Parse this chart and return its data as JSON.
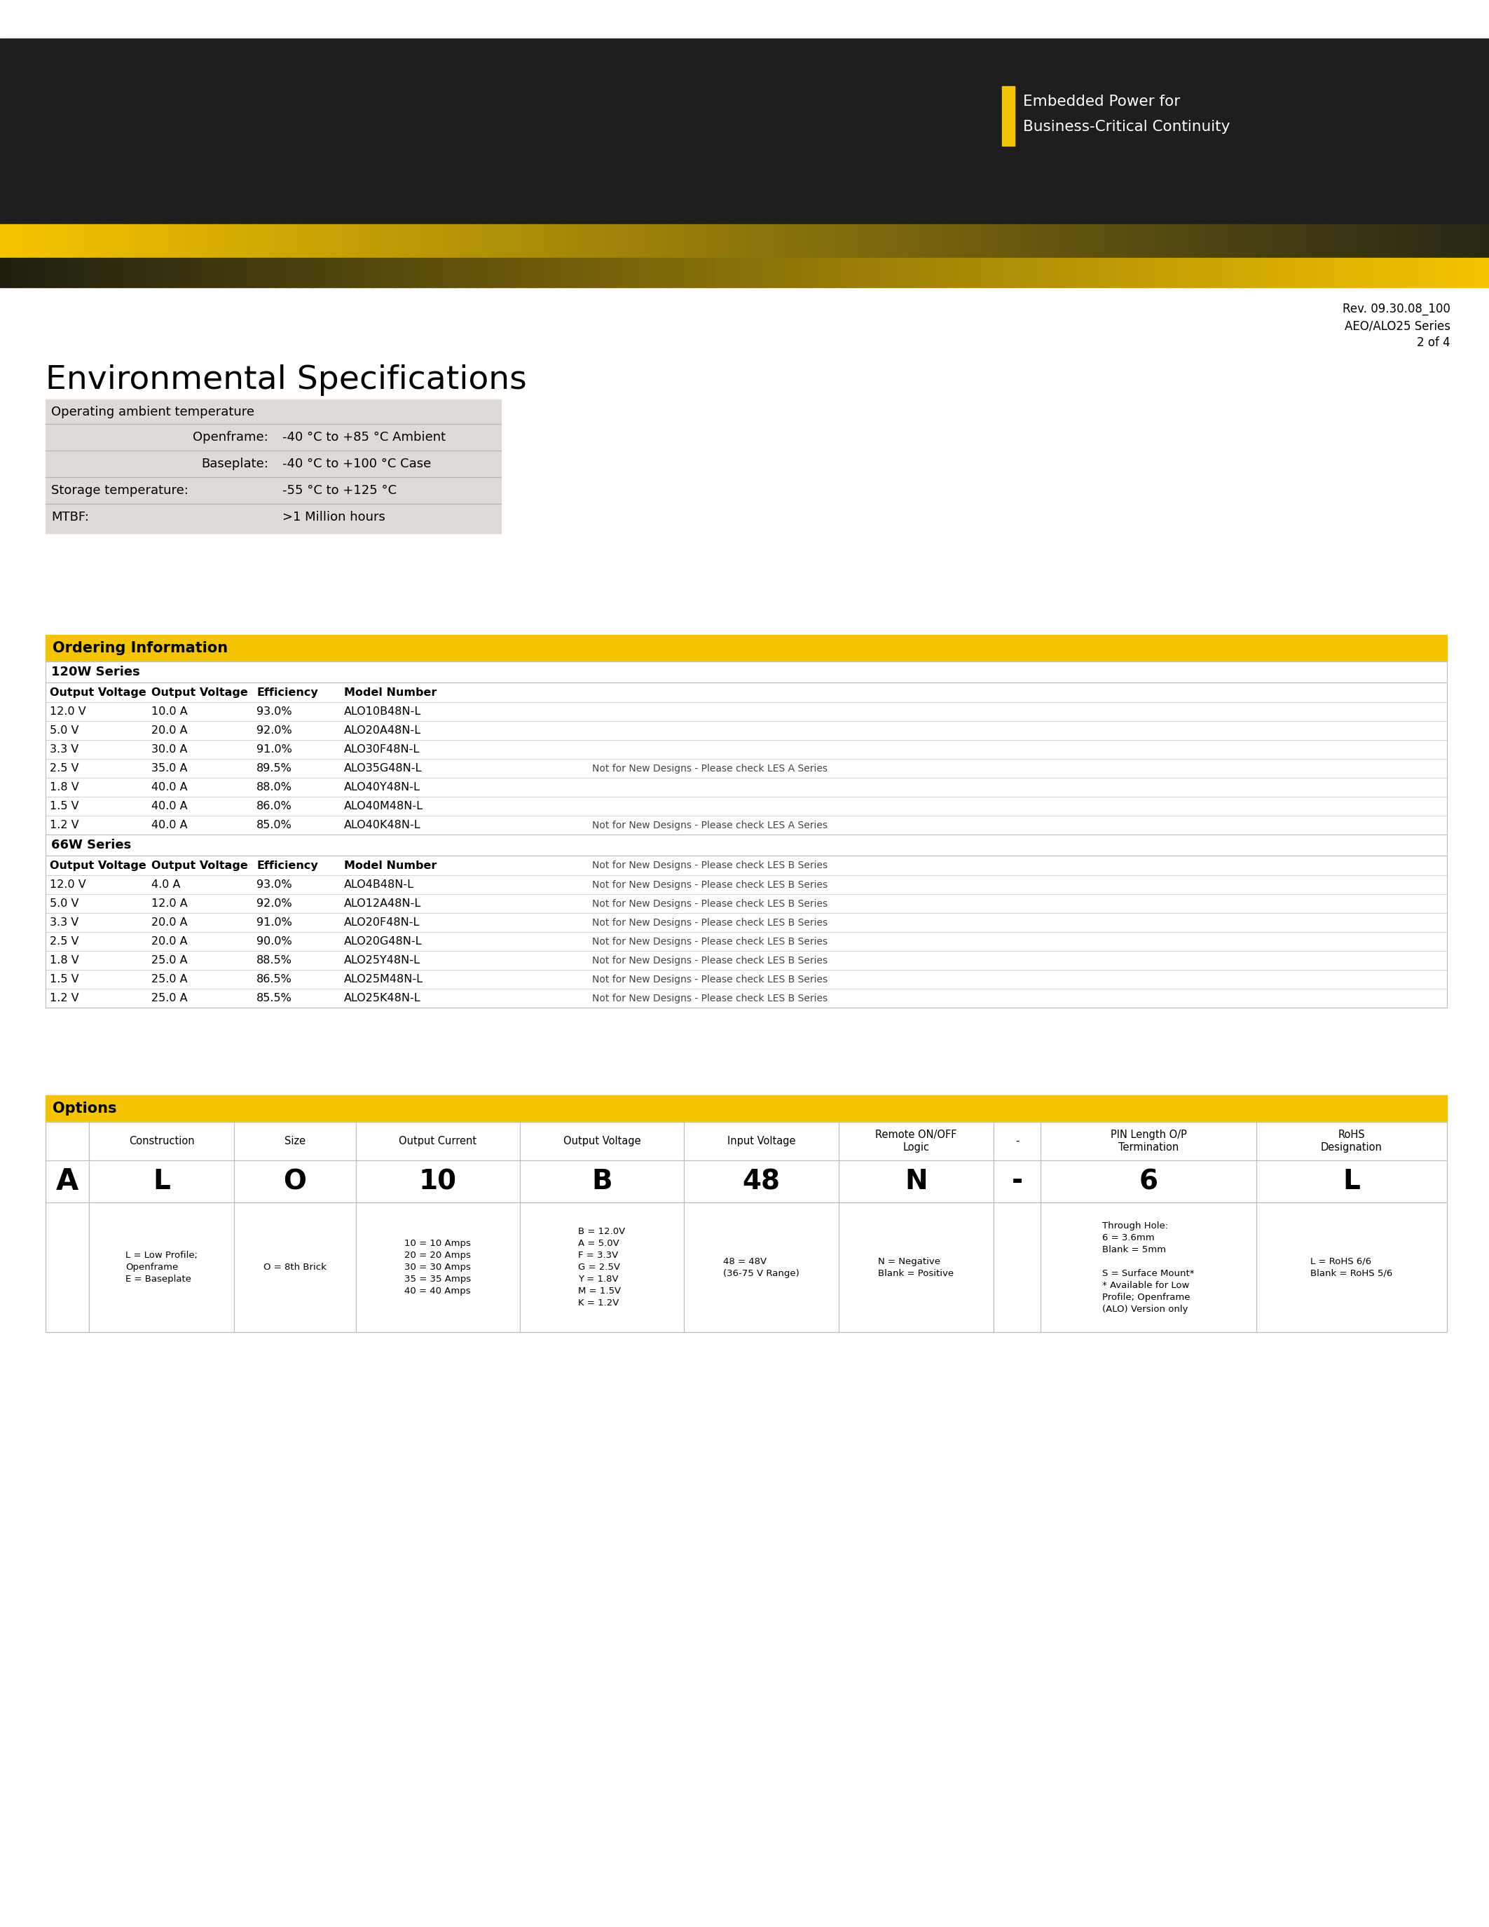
{
  "bg_color": "#ffffff",
  "header_dark_color": "#1e1e1e",
  "yellow_color": "#f5c400",
  "rev_text": "Rev. 09.30.08_100",
  "series_text": "AEO/ALO25 Series",
  "page_text": "2 of 4",
  "env_title": "Environmental Specifications",
  "env_table_bg": "#dedad5",
  "env_rows": [
    [
      "Operating ambient temperature",
      "",
      false
    ],
    [
      "Openframe:",
      "-40 °C to +85 °C Ambient",
      true
    ],
    [
      "Baseplate:",
      "-40 °C to +100 °C Case",
      true
    ],
    [
      "Storage temperature:",
      "-55 °C to +125 °C",
      false
    ],
    [
      "MTBF:",
      ">1 Million hours",
      false
    ]
  ],
  "ordering_title": "Ordering Information",
  "col_headers_120": [
    "Output Voltage",
    "Output Voltage",
    "Efficiency",
    "Model Number"
  ],
  "col_headers_66": [
    "Output Voltage",
    "Output Voltage",
    "Efficiency",
    "Model Number"
  ],
  "section_120w": "120W Series",
  "section_66w": "66W Series",
  "rows_120w": [
    [
      "12.0 V",
      "10.0 A",
      "93.0%",
      "ALO10B48N-L",
      ""
    ],
    [
      "5.0 V",
      "20.0 A",
      "92.0%",
      "ALO20A48N-L",
      ""
    ],
    [
      "3.3 V",
      "30.0 A",
      "91.0%",
      "ALO30F48N-L",
      ""
    ],
    [
      "2.5 V",
      "35.0 A",
      "89.5%",
      "ALO35G48N-L",
      "Not for New Designs - Please check LES A Series"
    ],
    [
      "1.8 V",
      "40.0 A",
      "88.0%",
      "ALO40Y48N-L",
      ""
    ],
    [
      "1.5 V",
      "40.0 A",
      "86.0%",
      "ALO40M48N-L",
      ""
    ],
    [
      "1.2 V",
      "40.0 A",
      "85.0%",
      "ALO40K48N-L",
      "Not for New Designs - Please check LES A Series"
    ]
  ],
  "rows_66w": [
    [
      "12.0 V",
      "4.0 A",
      "93.0%",
      "ALO4B48N-L",
      "Not for New Designs - Please check LES B Series"
    ],
    [
      "5.0 V",
      "12.0 A",
      "92.0%",
      "ALO12A48N-L",
      "Not for New Designs - Please check LES B Series"
    ],
    [
      "3.3 V",
      "20.0 A",
      "91.0%",
      "ALO20F48N-L",
      "Not for New Designs - Please check LES B Series"
    ],
    [
      "2.5 V",
      "20.0 A",
      "90.0%",
      "ALO20G48N-L",
      "Not for New Designs - Please check LES B Series"
    ],
    [
      "1.8 V",
      "25.0 A",
      "88.5%",
      "ALO25Y48N-L",
      "Not for New Designs - Please check LES B Series"
    ],
    [
      "1.5 V",
      "25.0 A",
      "86.5%",
      "ALO25M48N-L",
      "Not for New Designs - Please check LES B Series"
    ],
    [
      "1.2 V",
      "25.0 A",
      "85.5%",
      "ALO25K48N-L",
      "Not for New Designs - Please check LES B Series"
    ]
  ],
  "options_title": "Options",
  "options_header": [
    "Construction",
    "Size",
    "Output Current",
    "Output Voltage",
    "Input Voltage",
    "Remote ON/OFF\nLogic",
    "-",
    "PIN Length O/P\nTermination",
    "RoHS\nDesignation"
  ],
  "options_values": [
    "L",
    "O",
    "10",
    "B",
    "48",
    "N",
    "-",
    "6",
    "L"
  ],
  "options_desc": [
    "L = Low Profile;\nOpenframe\nE = Baseplate",
    "O = 8th Brick",
    "10 = 10 Amps\n20 = 20 Amps\n30 = 30 Amps\n35 = 35 Amps\n40 = 40 Amps",
    "B = 12.0V\nA = 5.0V\nF = 3.3V\nG = 2.5V\nY = 1.8V\nM = 1.5V\nK = 1.2V",
    "48 = 48V\n(36-75 V Range)",
    "N = Negative\nBlank = Positive",
    "",
    "Through Hole:\n6 = 3.6mm\nBlank = 5mm\n\nS = Surface Mount*\n* Available for Low\nProfile; Openframe\n(ALO) Version only",
    "L = RoHS 6/6\nBlank = RoHS 5/6"
  ]
}
